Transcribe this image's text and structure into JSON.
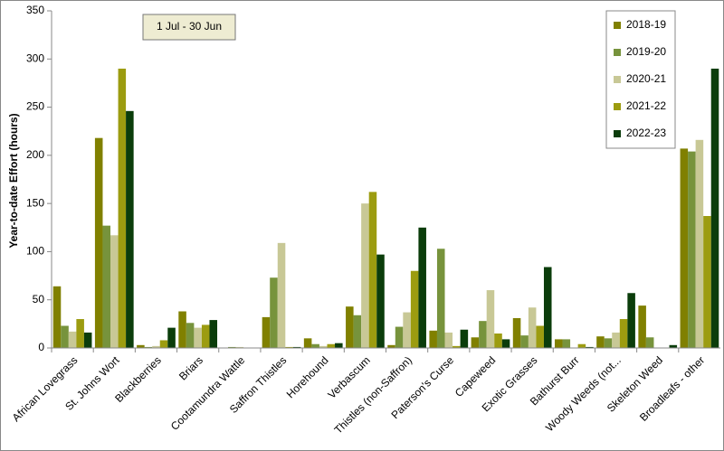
{
  "chart_data": {
    "type": "bar",
    "annotation": "1 Jul  -  30 Jun",
    "y_label": "Year-to-date Effort  (hours)",
    "categories": [
      "African Lovegrass",
      "St. Johns Wort",
      "Blackberries",
      "Briars",
      "Cootamundra Wattle",
      "Saffron Thistles",
      "Horehound",
      "Verbascum",
      "Thistles (non-Saffron)",
      "Paterson's Curse",
      "Capeweed",
      "Exotic Grasses",
      "Bathurst Burr",
      "Woody Weeds (not...",
      "Skeleton Weed",
      "Broadleafs - other"
    ],
    "series": [
      {
        "name": "2018-19",
        "color": "#808000",
        "values": [
          64,
          218,
          3,
          38,
          0,
          32,
          10,
          43,
          3,
          18,
          11,
          31,
          9,
          12,
          44,
          207
        ]
      },
      {
        "name": "2019-20",
        "color": "#77933c",
        "values": [
          23,
          127,
          1,
          26,
          1,
          73,
          4,
          34,
          22,
          103,
          28,
          13,
          9,
          10,
          11,
          204
        ]
      },
      {
        "name": "2020-21",
        "color": "#c8c896",
        "values": [
          17,
          117,
          2,
          21,
          1,
          109,
          2,
          150,
          37,
          16,
          60,
          42,
          0,
          16,
          0,
          216
        ]
      },
      {
        "name": "2021-22",
        "color": "#9c9c10",
        "values": [
          30,
          290,
          8,
          24,
          0,
          1,
          4,
          162,
          80,
          2,
          15,
          23,
          4,
          30,
          0,
          137
        ]
      },
      {
        "name": "2022-23",
        "color": "#0b3d0b",
        "values": [
          16,
          246,
          21,
          29,
          0,
          1,
          5,
          97,
          125,
          19,
          9,
          84,
          1,
          57,
          3,
          290
        ]
      }
    ],
    "ylim": [
      0,
      350
    ],
    "yticks": [
      0,
      50,
      100,
      150,
      200,
      250,
      300,
      350
    ],
    "grid": false,
    "legend": "top-right"
  }
}
